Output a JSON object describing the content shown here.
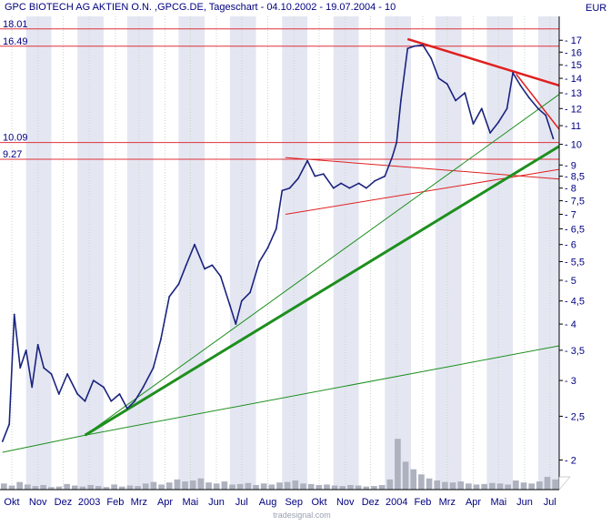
{
  "title": "GPC BIOTECH AG AKTIEN O.N. ,GPCG.DE, Tageschart - 04.10.2002 - 19.07.2004 - 10",
  "currency": "EUR",
  "watermark": "tradesignal.com",
  "colors": {
    "background": "#ffffff",
    "band_alt": "#e4e7f2",
    "dotted_grid": "#c9d6c9",
    "price": "#1a237e",
    "level_line": "#e0303a",
    "trend_red": "#e02020",
    "trend_green": "#1e8f1e",
    "volume": "#aeb2bf",
    "text": "#000080",
    "axis": "#000000"
  },
  "chart_data": {
    "type": "line",
    "title": "GPC BIOTECH AG AKTIEN O.N. ,GPCG.DE, Tageschart - 04.10.2002 - 19.07.2004 - 10",
    "xlabel": "",
    "ylabel": "EUR",
    "y_scale": "log",
    "ylim": [
      1.72,
      19.2
    ],
    "xlim": [
      "2002-10-01",
      "2004-07-26"
    ],
    "grid": true,
    "y_ticks": [
      "2",
      "2,5",
      "3",
      "3,5",
      "4",
      "4,5",
      "5",
      "5,5",
      "6",
      "6,5",
      "7",
      "7,5",
      "8",
      "8,5",
      "9",
      "10",
      "11",
      "12",
      "13",
      "14",
      "15",
      "16",
      "17"
    ],
    "x_ticks": [
      {
        "date": "2002-10-15",
        "label": "Okt"
      },
      {
        "date": "2002-11-15",
        "label": "Nov"
      },
      {
        "date": "2002-12-15",
        "label": "Dez"
      },
      {
        "date": "2003-01-15",
        "label": "2003"
      },
      {
        "date": "2003-02-15",
        "label": "Feb"
      },
      {
        "date": "2003-03-15",
        "label": "Mrz"
      },
      {
        "date": "2003-04-15",
        "label": "Apr"
      },
      {
        "date": "2003-05-15",
        "label": "Mai"
      },
      {
        "date": "2003-06-15",
        "label": "Jun"
      },
      {
        "date": "2003-07-15",
        "label": "Jul"
      },
      {
        "date": "2003-08-15",
        "label": "Aug"
      },
      {
        "date": "2003-09-15",
        "label": "Sep"
      },
      {
        "date": "2003-10-15",
        "label": "Okt"
      },
      {
        "date": "2003-11-15",
        "label": "Nov"
      },
      {
        "date": "2003-12-15",
        "label": "Dez"
      },
      {
        "date": "2004-01-15",
        "label": "2004"
      },
      {
        "date": "2004-02-15",
        "label": "Feb"
      },
      {
        "date": "2004-03-15",
        "label": "Mrz"
      },
      {
        "date": "2004-04-15",
        "label": "Apr"
      },
      {
        "date": "2004-05-15",
        "label": "Mai"
      },
      {
        "date": "2004-06-15",
        "label": "Jun"
      },
      {
        "date": "2004-07-15",
        "label": "Jul"
      }
    ],
    "series": [
      {
        "type": "line",
        "x": [
          "2002-10-04",
          "2002-10-12",
          "2002-10-18",
          "2002-10-25",
          "2002-11-01",
          "2002-11-08",
          "2002-11-15",
          "2002-11-22",
          "2002-12-01",
          "2002-12-10",
          "2002-12-20",
          "2003-01-01",
          "2003-01-10",
          "2003-01-20",
          "2003-02-01",
          "2003-02-10",
          "2003-02-20",
          "2003-03-01",
          "2003-03-10",
          "2003-03-20",
          "2003-04-01",
          "2003-04-10",
          "2003-04-20",
          "2003-05-01",
          "2003-05-10",
          "2003-05-20",
          "2003-06-01",
          "2003-06-10",
          "2003-06-20",
          "2003-07-01",
          "2003-07-08",
          "2003-07-15",
          "2003-07-25",
          "2003-08-05",
          "2003-08-15",
          "2003-08-25",
          "2003-09-01",
          "2003-09-10",
          "2003-09-20",
          "2003-10-01",
          "2003-10-10",
          "2003-10-20",
          "2003-11-01",
          "2003-11-10",
          "2003-11-20",
          "2003-12-01",
          "2003-12-10",
          "2003-12-20",
          "2004-01-01",
          "2004-01-10",
          "2004-01-15",
          "2004-01-20",
          "2004-01-28",
          "2004-02-05",
          "2004-02-15",
          "2004-02-25",
          "2004-03-05",
          "2004-03-15",
          "2004-03-25",
          "2004-04-05",
          "2004-04-15",
          "2004-04-25",
          "2004-05-05",
          "2004-05-15",
          "2004-05-25",
          "2004-06-01",
          "2004-06-10",
          "2004-06-20",
          "2004-07-01",
          "2004-07-10",
          "2004-07-19"
        ],
        "y": [
          2.2,
          2.4,
          4.2,
          3.2,
          3.5,
          2.9,
          3.6,
          3.2,
          3.1,
          2.8,
          3.1,
          2.8,
          2.7,
          3.0,
          2.9,
          2.7,
          2.8,
          2.6,
          2.7,
          2.9,
          3.2,
          3.7,
          4.6,
          4.9,
          5.4,
          6.0,
          5.3,
          5.4,
          5.1,
          4.4,
          4.0,
          4.5,
          4.7,
          5.5,
          5.9,
          6.5,
          7.9,
          8.0,
          8.4,
          9.2,
          8.5,
          8.6,
          8.0,
          8.2,
          8.0,
          8.2,
          8.0,
          8.3,
          8.5,
          9.4,
          10.1,
          12.5,
          16.3,
          16.5,
          16.6,
          15.5,
          14.0,
          13.6,
          12.5,
          13.0,
          11.1,
          12.0,
          10.6,
          11.2,
          12.0,
          14.4,
          13.5,
          12.7,
          12.0,
          11.6,
          10.3
        ]
      }
    ],
    "horizontal_levels": [
      {
        "value": 18.01,
        "label": "18.01"
      },
      {
        "value": 16.49,
        "label": "16.49"
      },
      {
        "value": 10.09,
        "label": "10.09"
      },
      {
        "value": 9.27,
        "label": "9.27"
      }
    ],
    "trendlines": [
      {
        "color": "red",
        "weight": 2.5,
        "from": {
          "x": "2004-01-28",
          "y": 17.1
        },
        "to": {
          "x": "2004-07-26",
          "y": 13.5
        }
      },
      {
        "color": "red",
        "weight": 1.5,
        "from": {
          "x": "2004-06-05",
          "y": 14.3
        },
        "to": {
          "x": "2004-07-26",
          "y": 10.8
        }
      },
      {
        "color": "red",
        "weight": 1,
        "from": {
          "x": "2003-09-05",
          "y": 9.35
        },
        "to": {
          "x": "2004-07-26",
          "y": 8.38
        }
      },
      {
        "color": "red",
        "weight": 1,
        "from": {
          "x": "2003-09-05",
          "y": 7.0
        },
        "to": {
          "x": "2004-07-26",
          "y": 8.8
        }
      },
      {
        "color": "green",
        "weight": 3,
        "from": {
          "x": "2003-01-10",
          "y": 2.27
        },
        "to": {
          "x": "2004-07-26",
          "y": 9.9
        }
      },
      {
        "color": "green",
        "weight": 1,
        "from": {
          "x": "2003-01-10",
          "y": 2.27
        },
        "to": {
          "x": "2004-07-26",
          "y": 12.9
        }
      },
      {
        "color": "green",
        "weight": 1,
        "from": {
          "x": "2002-10-04",
          "y": 2.08
        },
        "to": {
          "x": "2003-01-10",
          "y": 2.27
        }
      },
      {
        "color": "green",
        "weight": 1,
        "from": {
          "x": "2003-01-10",
          "y": 2.27
        },
        "to": {
          "x": "2004-07-26",
          "y": 3.58
        }
      }
    ],
    "volume": {
      "relative": [
        0.12,
        0.08,
        0.15,
        0.1,
        0.07,
        0.09,
        0.05,
        0.06,
        0.11,
        0.08,
        0.06,
        0.09,
        0.07,
        0.05,
        0.1,
        0.06,
        0.08,
        0.07,
        0.12,
        0.15,
        0.1,
        0.14,
        0.2,
        0.16,
        0.18,
        0.22,
        0.14,
        0.12,
        0.16,
        0.1,
        0.11,
        0.13,
        0.09,
        0.12,
        0.1,
        0.14,
        0.15,
        0.18,
        0.12,
        0.11,
        0.09,
        0.1,
        0.08,
        0.07,
        0.09,
        0.08,
        0.06,
        0.07,
        0.09,
        0.2,
        1.0,
        0.55,
        0.4,
        0.3,
        0.22,
        0.18,
        0.15,
        0.14,
        0.16,
        0.12,
        0.1,
        0.11,
        0.13,
        0.12,
        0.1,
        0.18,
        0.14,
        0.12,
        0.16,
        0.25,
        0.2
      ]
    }
  }
}
